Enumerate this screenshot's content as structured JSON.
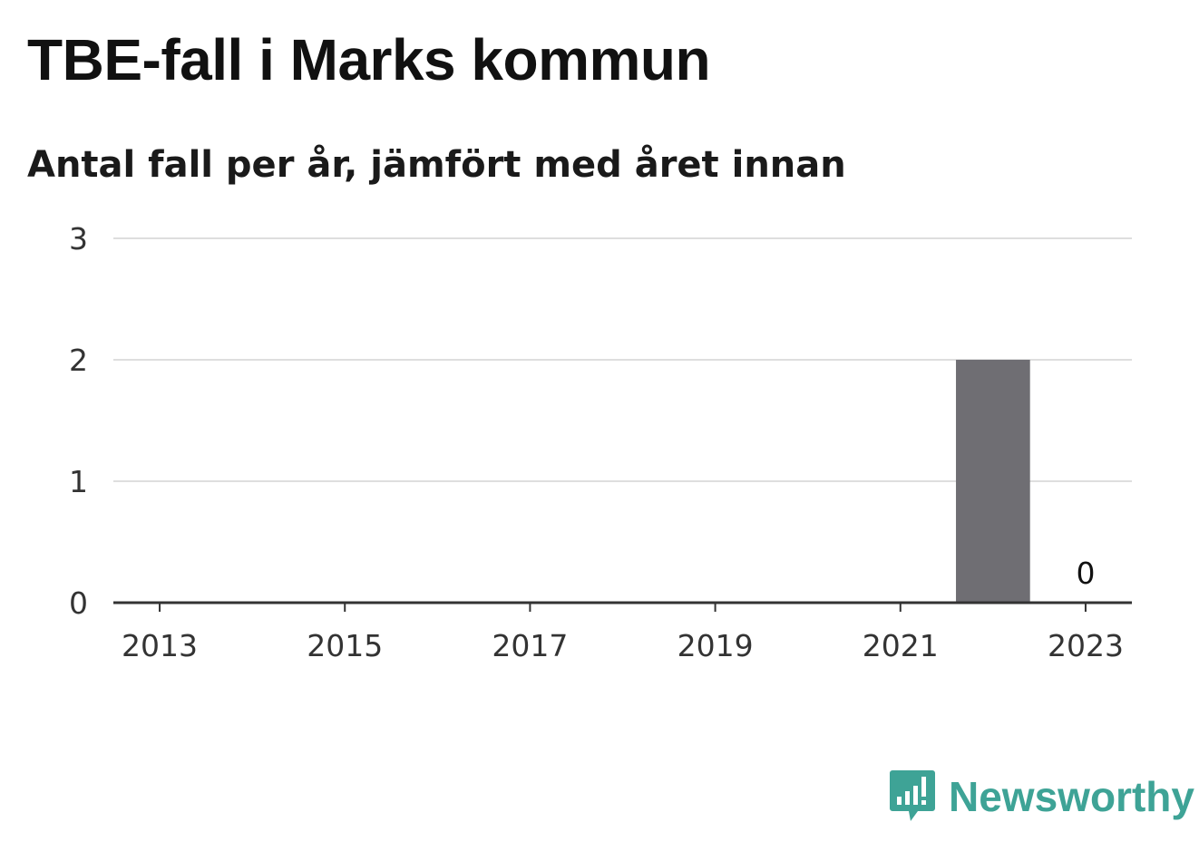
{
  "chart_data": {
    "type": "bar",
    "title": "TBE-fall i Marks kommun",
    "subtitle": "Antal fall per år, jämfört med året innan",
    "x": [
      2013,
      2014,
      2015,
      2016,
      2017,
      2018,
      2019,
      2020,
      2021,
      2022,
      2023
    ],
    "values": [
      null,
      null,
      null,
      null,
      null,
      null,
      null,
      null,
      null,
      2,
      0
    ],
    "x_ticks": [
      "2013",
      "2015",
      "2017",
      "2019",
      "2021",
      "2023"
    ],
    "y_ticks": [
      "0",
      "1",
      "2",
      "3"
    ],
    "ylim": [
      0,
      3
    ],
    "data_labels": [
      {
        "x": 2023,
        "label": "0"
      }
    ],
    "grid": true,
    "bar_color": "#6f6e73"
  },
  "brand": {
    "name": "Newsworthy",
    "icon": "newsworthy-logo-icon",
    "color": "#3ea396"
  }
}
